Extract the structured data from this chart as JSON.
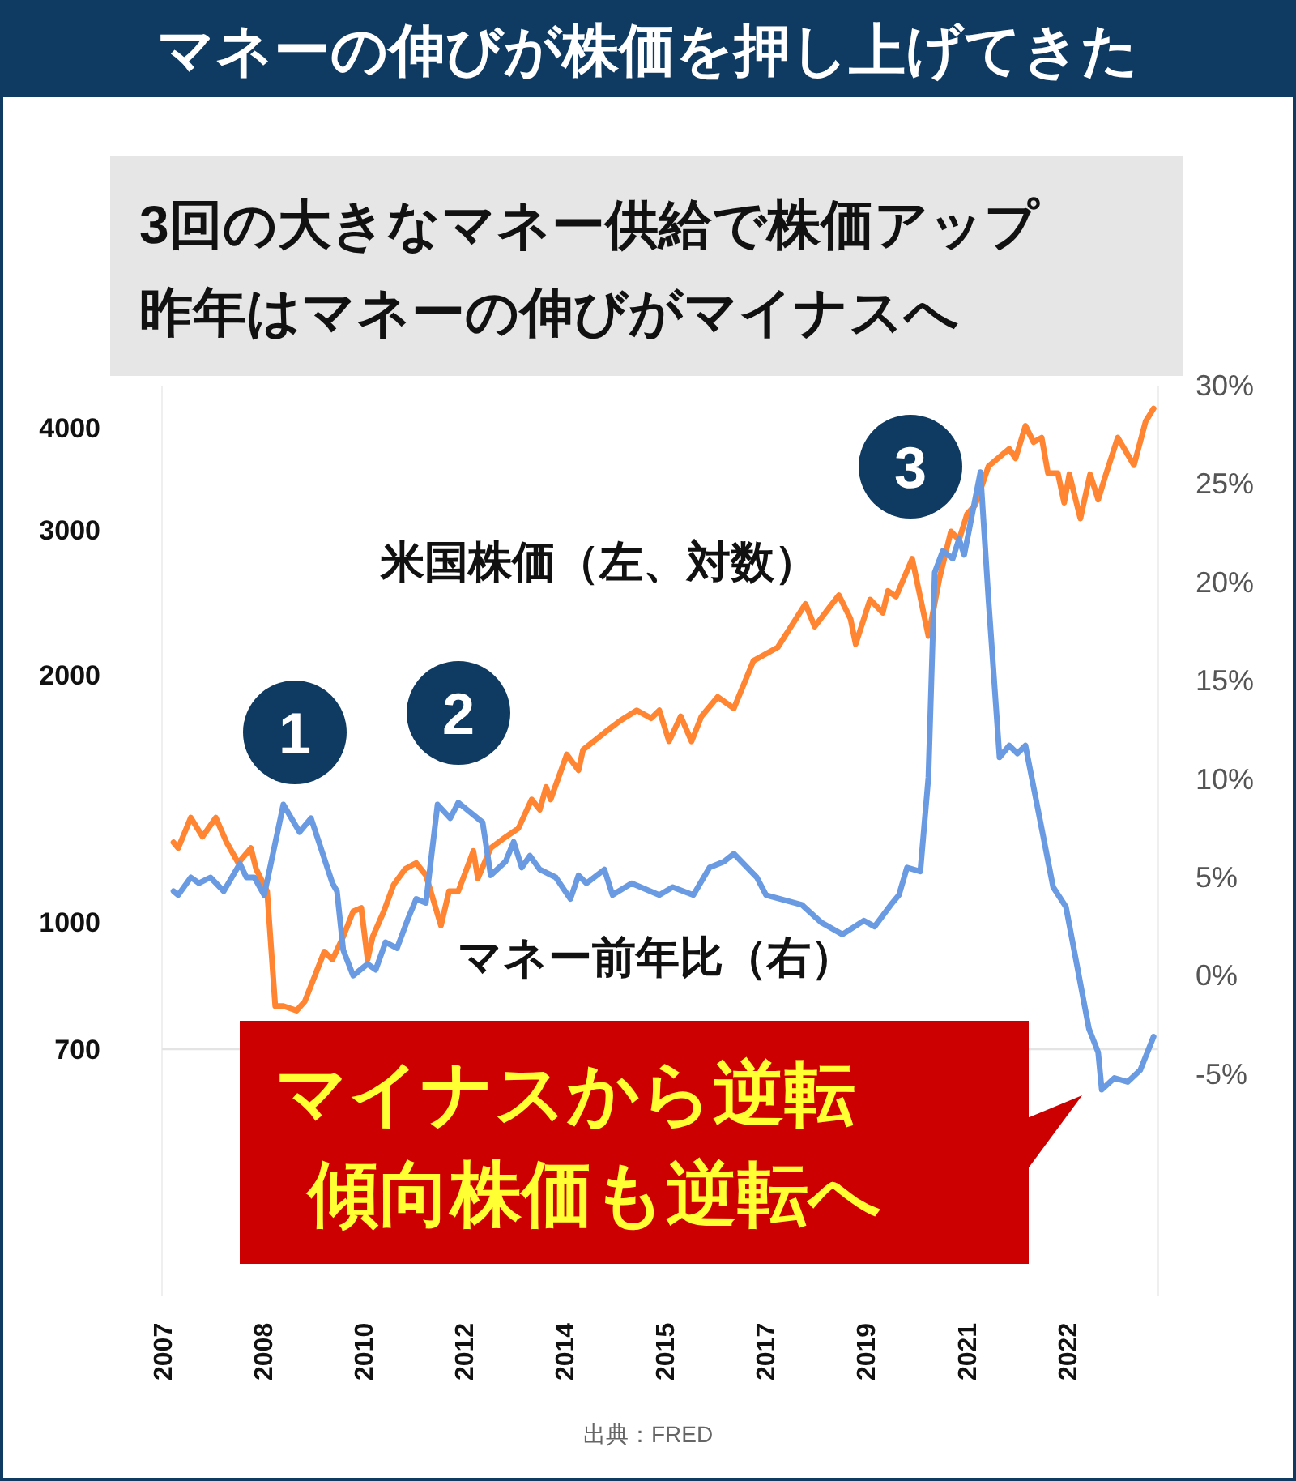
{
  "chart_data": {
    "type": "line",
    "title": "マネーの伸びが株価を押し上げてきた",
    "subtitle": "3回の大きなマネー供給で株価アップ昨年はマネーの伸びがマイナスへ",
    "log": "y",
    "xlim": [
      2006.67,
      2023.92
    ],
    "xticks": [
      {
        "value": 2006.67,
        "label": "2007"
      },
      {
        "value": 2008.41,
        "label": "2008"
      },
      {
        "value": 2010.15,
        "label": "2010"
      },
      {
        "value": 2011.89,
        "label": "2012"
      },
      {
        "value": 2013.63,
        "label": "2014"
      },
      {
        "value": 2015.37,
        "label": "2015"
      },
      {
        "value": 2017.11,
        "label": "2017"
      },
      {
        "value": 2018.85,
        "label": "2019"
      },
      {
        "value": 2020.59,
        "label": "2021"
      },
      {
        "value": 2022.33,
        "label": "2022"
      }
    ],
    "ylim": [
      350,
      4500
    ],
    "yticks": [
      700,
      1000,
      2000,
      3000,
      4000
    ],
    "y2lim": [
      -16.3,
      30
    ],
    "y2ticks": [
      {
        "value": -5,
        "label": "-5%"
      },
      {
        "value": 0,
        "label": "0%"
      },
      {
        "value": 5,
        "label": "5%"
      },
      {
        "value": 10,
        "label": "10%"
      },
      {
        "value": 15,
        "label": "15%"
      },
      {
        "value": 20,
        "label": "20%"
      },
      {
        "value": 25,
        "label": "25%"
      },
      {
        "value": 30,
        "label": "30%"
      }
    ],
    "ref_lines": [
      {
        "axis": "y",
        "value": 700,
        "color": "#e4e4e4"
      }
    ],
    "series": [
      {
        "name": "米国株価（左、対数）",
        "color": "#ff8533",
        "x": [
          2006.87,
          2006.95,
          2007.17,
          2007.37,
          2007.6,
          2007.79,
          2007.99,
          2008.21,
          2008.3,
          2008.49,
          2008.63,
          2008.77,
          2009.0,
          2009.14,
          2009.48,
          2009.62,
          2009.81,
          2009.98,
          2010.12,
          2010.23,
          2010.32,
          2010.51,
          2010.68,
          2010.88,
          2011.07,
          2011.24,
          2011.5,
          2011.64,
          2011.8,
          2012.06,
          2012.14,
          2012.36,
          2012.56,
          2012.84,
          2013.07,
          2013.21,
          2013.32,
          2013.4,
          2013.68,
          2013.88,
          2013.96,
          2014.33,
          2014.61,
          2014.89,
          2015.14,
          2015.28,
          2015.45,
          2015.65,
          2015.84,
          2016.01,
          2016.29,
          2016.57,
          2016.91,
          2017.33,
          2017.81,
          2017.97,
          2018.39,
          2018.59,
          2018.68,
          2018.93,
          2019.15,
          2019.24,
          2019.38,
          2019.66,
          2019.94,
          2020.13,
          2020.33,
          2020.47,
          2020.61,
          2020.75,
          2020.98,
          2021.34,
          2021.45,
          2021.62,
          2021.76,
          2021.9,
          2022.01,
          2022.18,
          2022.29,
          2022.38,
          2022.57,
          2022.74,
          2022.88,
          2023.02,
          2023.22,
          2023.5,
          2023.7,
          2023.84
        ],
        "values": [
          1250,
          1230,
          1340,
          1270,
          1340,
          1250,
          1180,
          1230,
          1160,
          1090,
          790,
          790,
          780,
          800,
          920,
          900,
          960,
          1030,
          1040,
          900,
          960,
          1030,
          1110,
          1160,
          1180,
          1140,
          990,
          1090,
          1090,
          1220,
          1130,
          1230,
          1260,
          1300,
          1410,
          1370,
          1460,
          1410,
          1600,
          1530,
          1620,
          1700,
          1760,
          1810,
          1770,
          1810,
          1660,
          1780,
          1660,
          1780,
          1880,
          1820,
          2080,
          2160,
          2440,
          2290,
          2500,
          2340,
          2180,
          2470,
          2380,
          2530,
          2490,
          2770,
          2230,
          2620,
          2990,
          2920,
          3140,
          3220,
          3590,
          3770,
          3670,
          4020,
          3840,
          3890,
          3520,
          3520,
          3240,
          3510,
          3100,
          3510,
          3270,
          3520,
          3890,
          3600,
          4070,
          4220
        ]
      },
      {
        "name": "マネー前年比（右）",
        "color": "#6a9be2",
        "axis": "y2",
        "x": [
          2006.87,
          2006.95,
          2007.17,
          2007.31,
          2007.51,
          2007.74,
          2008.02,
          2008.13,
          2008.27,
          2008.44,
          2008.77,
          2009.05,
          2009.25,
          2009.62,
          2009.7,
          2009.81,
          2009.98,
          2010.23,
          2010.37,
          2010.54,
          2010.74,
          2010.93,
          2011.07,
          2011.24,
          2011.44,
          2011.66,
          2011.8,
          2012.22,
          2012.36,
          2012.62,
          2012.76,
          2012.9,
          2013.04,
          2013.21,
          2013.49,
          2013.74,
          2013.88,
          2014.02,
          2014.33,
          2014.47,
          2014.8,
          2015.28,
          2015.51,
          2015.87,
          2016.15,
          2016.4,
          2016.57,
          2016.97,
          2017.13,
          2017.75,
          2018.09,
          2018.45,
          2018.82,
          2019.01,
          2019.29,
          2019.43,
          2019.57,
          2019.8,
          2019.94,
          2020.05,
          2020.19,
          2020.36,
          2020.47,
          2020.56,
          2020.84,
          2020.98,
          2021.17,
          2021.34,
          2021.48,
          2021.62,
          2022.1,
          2022.32,
          2022.72,
          2022.88,
          2022.94,
          2023.16,
          2023.39,
          2023.61,
          2023.84
        ],
        "values": [
          4.3,
          4.1,
          5.0,
          4.7,
          5.0,
          4.3,
          5.7,
          5.0,
          5.0,
          4.1,
          8.7,
          7.3,
          8.0,
          4.7,
          4.3,
          1.3,
          0.0,
          0.6,
          0.3,
          1.7,
          1.4,
          2.9,
          3.9,
          3.7,
          8.7,
          8.0,
          8.8,
          7.8,
          5.1,
          5.8,
          6.8,
          5.5,
          6.1,
          5.4,
          5.0,
          3.9,
          5.1,
          4.7,
          5.4,
          4.1,
          4.7,
          4.1,
          4.5,
          4.1,
          5.5,
          5.8,
          6.2,
          5.0,
          4.1,
          3.6,
          2.7,
          2.1,
          2.8,
          2.5,
          3.6,
          4.1,
          5.5,
          5.3,
          10.1,
          20.5,
          21.6,
          21.2,
          22.2,
          21.4,
          25.6,
          19.1,
          11.1,
          11.7,
          11.3,
          11.7,
          4.5,
          3.5,
          -2.7,
          -3.9,
          -5.8,
          -5.2,
          -5.4,
          -4.8,
          -3.1
        ]
      }
    ],
    "annotations": [
      "1",
      "2",
      "3",
      "マイナスから逆転",
      "傾向株価も逆転へ",
      "出典：FRED"
    ]
  }
}
